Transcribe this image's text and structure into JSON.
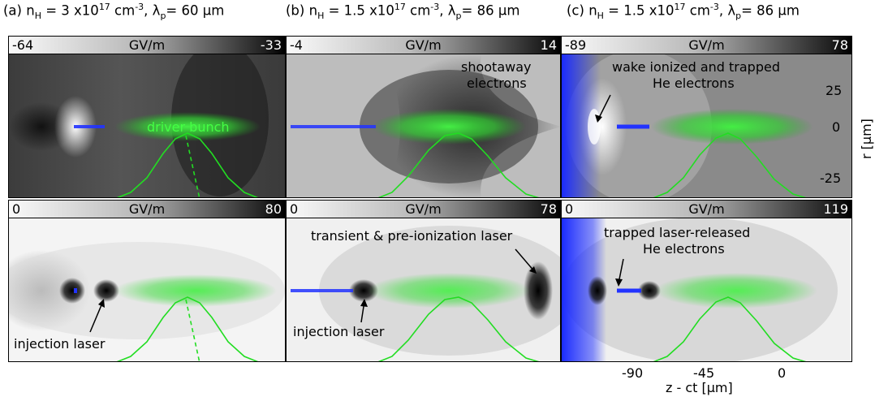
{
  "titles": [
    {
      "prefix": "(a) n",
      "sub": "H",
      "mid": " = 3 x10",
      "sup1": "17",
      "unit": " cm",
      "sup2": "-3",
      "tail": ", λ",
      "sub2": "p",
      "end": "= 60 μm"
    },
    {
      "prefix": "(b) n",
      "sub": "H",
      "mid": " = 1.5 x10",
      "sup1": "17",
      "unit": " cm",
      "sup2": "-3",
      "tail": ", λ",
      "sub2": "p",
      "end": "= 86 μm"
    },
    {
      "prefix": "(c) n",
      "sub": "H",
      "mid": " = 1.5 x10",
      "sup1": "17",
      "unit": " cm",
      "sup2": "-3",
      "tail": ", λ",
      "sub2": "p",
      "end": "= 86 μm"
    }
  ],
  "colorbars": {
    "unit": "GV/m",
    "top": [
      {
        "lo": "-64",
        "hi": "-33"
      },
      {
        "lo": "-4",
        "hi": "14"
      },
      {
        "lo": "-89",
        "hi": "78"
      }
    ],
    "bottom": [
      {
        "lo": "0",
        "hi": "80"
      },
      {
        "lo": "0",
        "hi": "78"
      },
      {
        "lo": "0",
        "hi": "119"
      }
    ]
  },
  "annotations": {
    "driver_bunch": "driver bunch",
    "shootaway_1": "shootaway",
    "shootaway_2": "electrons",
    "wake_1": "wake ionized and trapped",
    "wake_2": "He electrons",
    "injection_a": "injection laser",
    "transient": "transient & pre-ionization laser",
    "injection_b": "injection laser",
    "trapped_1": "trapped laser-released",
    "trapped_2": "He electrons"
  },
  "axes": {
    "y_label": "r [μm]",
    "y_ticks": [
      "25",
      "0",
      "-25"
    ],
    "x_label": "z - ct [μm]",
    "x_ticks": [
      "-90",
      "-45",
      "0"
    ]
  },
  "colors": {
    "bunch": "#33dd33",
    "electrons": "#2233ff",
    "curve": "#22dd22"
  }
}
